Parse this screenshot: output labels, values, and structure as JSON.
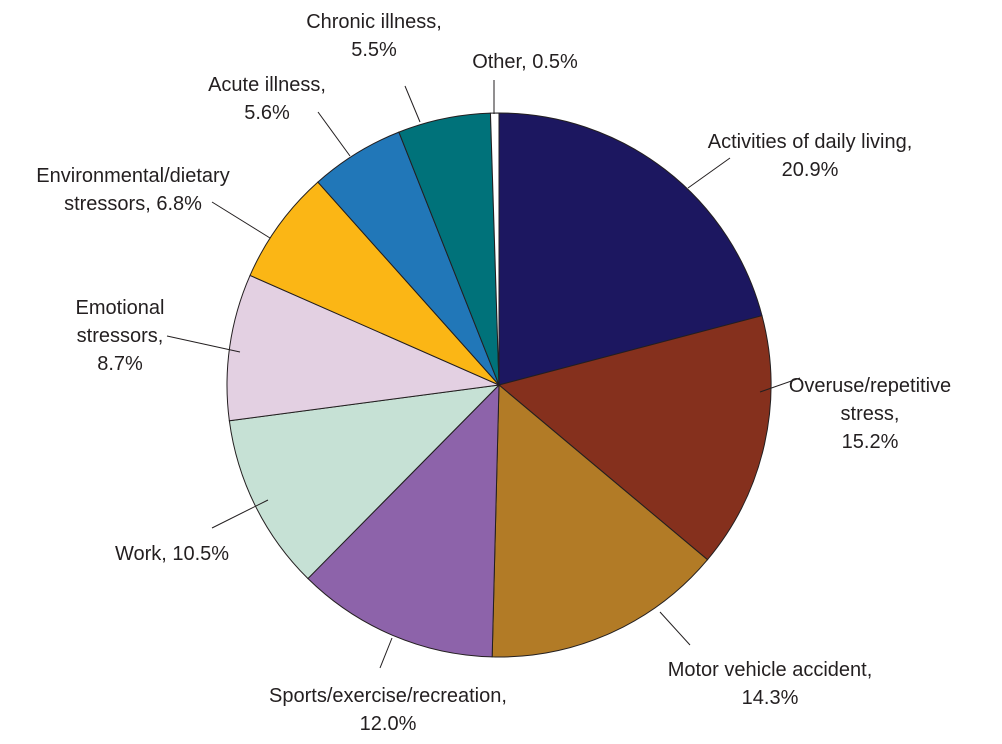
{
  "chart_data": {
    "type": "pie",
    "start_angle_deg": 0,
    "direction": "clockwise",
    "slices": [
      {
        "label_lines": [
          "Activities of daily living,",
          "20.9%"
        ],
        "value": 20.9,
        "color": "#1c1760"
      },
      {
        "label_lines": [
          "Overuse/repetitive",
          "stress,",
          "15.2%"
        ],
        "value": 15.2,
        "color": "#85301d"
      },
      {
        "label_lines": [
          "Motor vehicle accident,",
          "14.3%"
        ],
        "value": 14.3,
        "color": "#b27b26"
      },
      {
        "label_lines": [
          "Sports/exercise/recreation,",
          "12.0%"
        ],
        "value": 12.0,
        "color": "#8d63aa"
      },
      {
        "label_lines": [
          "Work, 10.5%"
        ],
        "value": 10.5,
        "color": "#c6e1d5"
      },
      {
        "label_lines": [
          "Emotional",
          "stressors,",
          "8.7%"
        ],
        "value": 8.7,
        "color": "#e3d0e2"
      },
      {
        "label_lines": [
          "Environmental/dietary",
          "stressors, 6.8%"
        ],
        "value": 6.8,
        "color": "#fbb615"
      },
      {
        "label_lines": [
          "Acute illness,",
          "5.6%"
        ],
        "value": 5.6,
        "color": "#2177b8"
      },
      {
        "label_lines": [
          "Chronic illness,",
          "5.5%"
        ],
        "value": 5.5,
        "color": "#00727a"
      },
      {
        "label_lines": [
          "Other, 0.5%"
        ],
        "value": 0.5,
        "color": "#ffffff"
      }
    ]
  }
}
